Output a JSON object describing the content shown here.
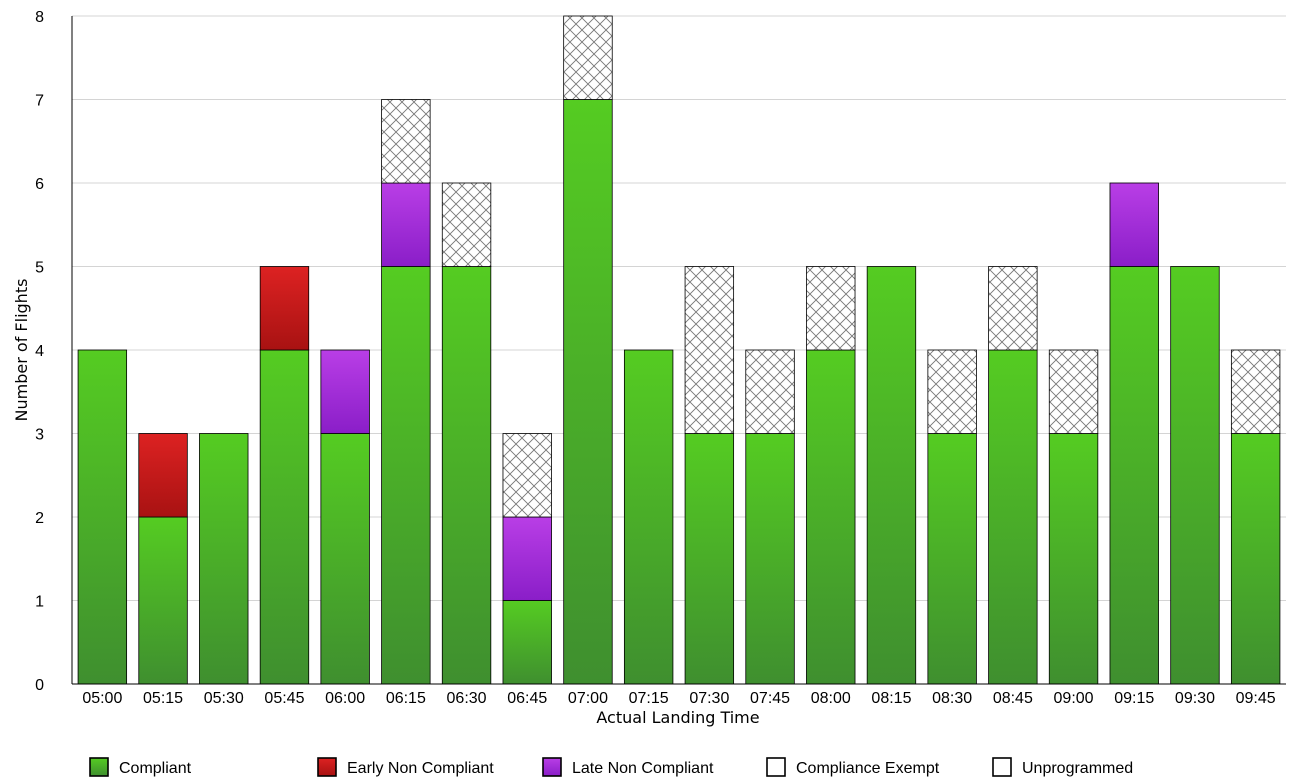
{
  "chart_data": {
    "type": "bar",
    "stacked": true,
    "title": "",
    "xlabel": "Actual Landing Time",
    "ylabel": "Number of Flights",
    "ylim": [
      0,
      8
    ],
    "yticks": [
      0,
      1,
      2,
      3,
      4,
      5,
      6,
      7,
      8
    ],
    "grid": true,
    "legend_position": "bottom",
    "categories": [
      "05:00",
      "05:15",
      "05:30",
      "05:45",
      "06:00",
      "06:15",
      "06:30",
      "06:45",
      "07:00",
      "07:15",
      "07:30",
      "07:45",
      "08:00",
      "08:15",
      "08:30",
      "08:45",
      "09:00",
      "09:15",
      "09:30",
      "09:45"
    ],
    "series": [
      {
        "name": "Compliant",
        "color": "#44aa22",
        "values": [
          4,
          2,
          3,
          4,
          3,
          5,
          5,
          1,
          7,
          4,
          3,
          3,
          4,
          5,
          3,
          4,
          3,
          5,
          5,
          3
        ]
      },
      {
        "name": "Early Non Compliant",
        "color": "#c41a1a",
        "values": [
          0,
          1,
          0,
          1,
          0,
          0,
          0,
          0,
          0,
          0,
          0,
          0,
          0,
          0,
          0,
          0,
          0,
          0,
          0,
          0
        ]
      },
      {
        "name": "Late Non Compliant",
        "color": "#9b2fd6",
        "values": [
          0,
          0,
          0,
          0,
          1,
          1,
          0,
          1,
          0,
          0,
          0,
          0,
          0,
          0,
          0,
          0,
          0,
          1,
          0,
          0
        ]
      },
      {
        "name": "Compliance Exempt",
        "color": "#ffffff",
        "values": [
          0,
          0,
          0,
          0,
          0,
          1,
          1,
          1,
          1,
          0,
          2,
          1,
          1,
          0,
          1,
          1,
          1,
          0,
          0,
          1
        ]
      },
      {
        "name": "Unprogrammed",
        "color": "#ffffff",
        "values": [
          0,
          0,
          0,
          0,
          0,
          0,
          0,
          0,
          0,
          0,
          0,
          0,
          0,
          0,
          0,
          0,
          0,
          0,
          0,
          0
        ]
      }
    ]
  }
}
